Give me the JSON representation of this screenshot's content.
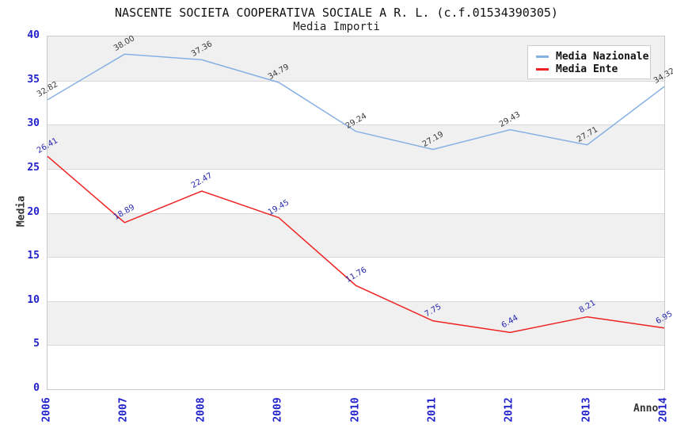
{
  "chart_data": {
    "type": "line",
    "title": "NASCENTE SOCIETA COOPERATIVA SOCIALE A R. L. (c.f.01534390305)",
    "subtitle": "Media Importi",
    "xlabel": "Anno",
    "ylabel": "Media",
    "categories": [
      "2006",
      "2007",
      "2008",
      "2009",
      "2010",
      "2011",
      "2012",
      "2013",
      "2014"
    ],
    "series": [
      {
        "name": "Media Nazionale",
        "color": "#86b0e4",
        "label_color": "#3a3a3a",
        "values": [
          32.82,
          38.0,
          37.36,
          34.79,
          29.24,
          27.19,
          29.43,
          27.71,
          34.32
        ]
      },
      {
        "name": "Media Ente",
        "color": "#ee2222",
        "label_color": "#2828b0",
        "values": [
          26.41,
          18.89,
          22.47,
          19.45,
          11.76,
          7.75,
          6.44,
          8.21,
          6.95
        ]
      }
    ],
    "ylim": [
      0,
      40
    ],
    "ytick_step": 5,
    "yticks": [
      0,
      5,
      10,
      15,
      20,
      25,
      30,
      35,
      40
    ],
    "grid": true,
    "banded_background": true,
    "legend_position": "top-right",
    "colors": {
      "axis_tick_labels": "#2222cc",
      "band_gray": "#f0f0f0",
      "gridline": "#d9d9d9",
      "plot_border": "#c9c9c9"
    }
  }
}
